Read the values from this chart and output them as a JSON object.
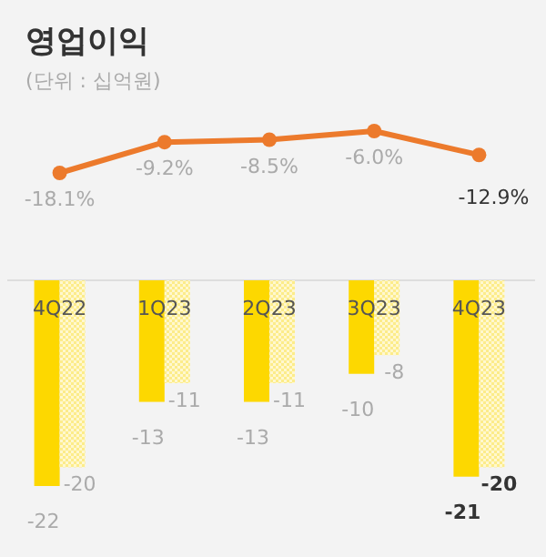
{
  "chart_data": [
    {
      "type": "line",
      "title": "영업이익",
      "subtitle": "(단위 : 십억원)",
      "categories": [
        null,
        null,
        null,
        null,
        null
      ],
      "series": [
        {
          "color": "#ec7a2c",
          "marker": "circle",
          "values": [
            -18.1,
            -9.2,
            -8.5,
            -6.0,
            -12.9
          ],
          "value_labels": [
            "-18.1%",
            "-9.2%",
            "-8.5%",
            "-6.0%",
            "-12.9%"
          ]
        }
      ]
    },
    {
      "type": "bar",
      "categories": [
        "4Q22",
        "1Q23",
        "2Q23",
        "3Q23",
        "4Q23"
      ],
      "series": [
        {
          "color": "#fdd800",
          "values": [
            -22,
            -13,
            -13,
            -10,
            -21
          ]
        },
        {
          "color": "#fcec8a",
          "values": [
            -20,
            -11,
            -11,
            -8,
            -20
          ]
        }
      ],
      "data_labels": true
    }
  ]
}
